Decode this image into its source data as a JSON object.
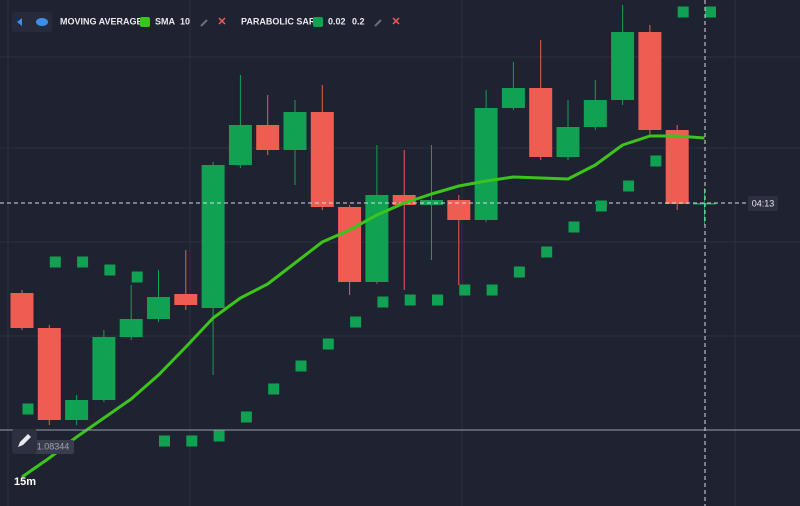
{
  "toolbar": {
    "countdown": "04:13",
    "price_marker": "1.08344",
    "timeframe": "15m"
  },
  "chart_data": {
    "type": "candlestick",
    "ylim": [
      0,
      506
    ],
    "up_color": "#10a152",
    "down_color": "#ef5d52",
    "open": [
      213,
      178,
      86,
      106,
      169,
      187,
      212,
      198,
      341,
      381,
      356,
      394,
      299,
      224,
      311,
      301,
      306,
      286,
      398,
      418,
      349,
      379,
      406,
      474,
      376,
      302
    ],
    "high": [
      216,
      181,
      111,
      176,
      221,
      236,
      256,
      344,
      431,
      411,
      406,
      421,
      301,
      361,
      356,
      361,
      311,
      416,
      444,
      466,
      406,
      426,
      501,
      481,
      381,
      318
    ],
    "low": [
      176,
      81,
      81,
      104,
      166,
      184,
      196,
      131,
      338,
      351,
      321,
      296,
      211,
      222,
      216,
      246,
      221,
      284,
      396,
      346,
      346,
      376,
      401,
      371,
      296,
      281
    ],
    "close": [
      178,
      86,
      106,
      169,
      187,
      209,
      201,
      341,
      381,
      356,
      394,
      299,
      224,
      311,
      301,
      306,
      286,
      398,
      418,
      349,
      379,
      406,
      474,
      376,
      302,
      303
    ],
    "indicators": [
      {
        "name": "MOVING AVERAGE",
        "kind": "SMA",
        "params": [
          10
        ],
        "color": "#3cc41c",
        "style": "line",
        "values": [
          29,
          48,
          69,
          88,
          107,
          131,
          159,
          188,
          208,
          222,
          243,
          264,
          276,
          291,
          303,
          312,
          320,
          325,
          329,
          328,
          327,
          341,
          361,
          370,
          370,
          368
        ]
      },
      {
        "name": "PARABOLIC SAR",
        "params": [
          0.02,
          0.2
        ],
        "color": "#10a152",
        "style": "dots",
        "values": [
          97,
          244,
          244,
          236,
          229,
          65,
          65,
          70,
          89,
          117,
          140,
          162,
          184,
          204,
          206,
          206,
          216,
          216,
          234,
          254,
          279,
          300,
          320,
          345,
          494,
          494
        ]
      }
    ]
  }
}
